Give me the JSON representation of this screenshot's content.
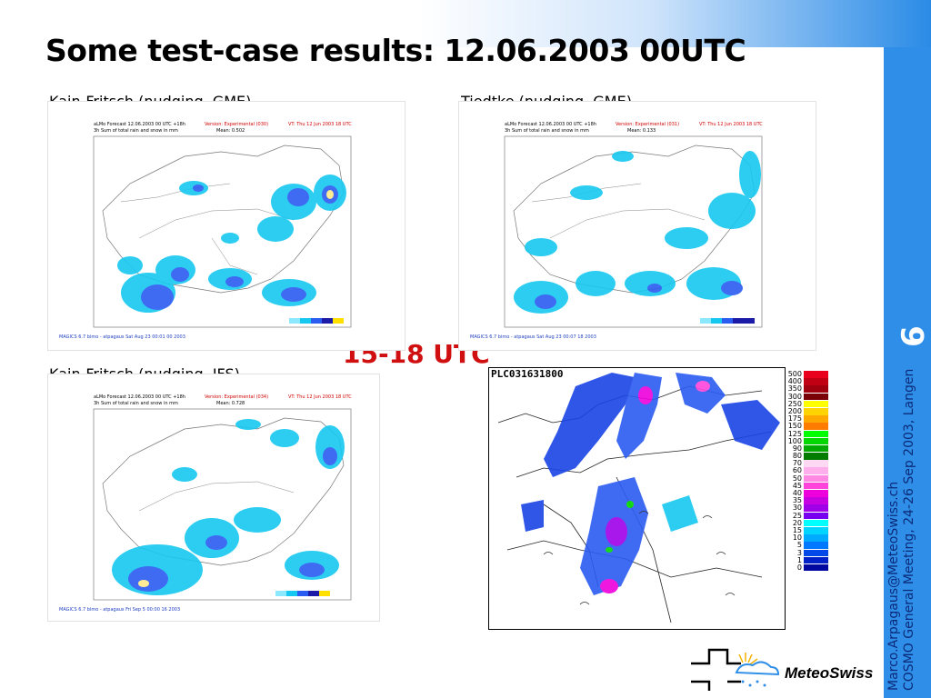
{
  "slide": {
    "title": "Some test-case results: 12.06.2003 00UTC",
    "page_number": "6",
    "time_label": "15-18 UTC",
    "side_email": "Marco.Arpagaus@MeteoSwiss.ch",
    "side_meeting": "COSMO General Meeting, 24-26 Sep 2003, Langen",
    "logo_text": "MeteoSwiss"
  },
  "panels": [
    {
      "caption": "Kain-Fritsch (nudging, GME)",
      "header_left1": "aLMo Forecast 12.06.2003 00 UTC +18h",
      "header_left2": "3h Sum of total rain and snow in mm",
      "header_mid1": "Version: Experimental (030)",
      "header_mid2": "Mean: 0.502",
      "header_right": "VT: Thu 12 Jun 2003 18 UTC",
      "footer": "MAGICS 6.7 bimo - atpagaus Sat Aug 23 00:01 00 2003"
    },
    {
      "caption": "Tiedtke (nudging, GME)",
      "header_left1": "aLMo Forecast 12.06.2003 00 UTC +18h",
      "header_left2": "3h Sum of total rain and snow in mm",
      "header_mid1": "Version: Experimental (031)",
      "header_mid2": "Mean: 0.133",
      "header_right": "VT: Thu 12 Jun 2003 18 UTC",
      "footer": "MAGICS 6.7 bimo - atpagaus Sat Aug 23 00:07 18 2003"
    },
    {
      "caption": "Kain-Fritsch (nudging, IFS)",
      "header_left1": "aLMo Forecast 12.06.2003 00 UTC +18h",
      "header_left2": "3h Sum of total rain and snow in mm",
      "header_mid1": "Version: Experimental (034)",
      "header_mid2": "Mean: 0.728",
      "header_right": "VT: Thu 12 Jun 2003 18 UTC",
      "footer": "MAGICS 6.7 bimo - atpagaus Fri Sep 5 00:00 16 2003"
    }
  ],
  "radar": {
    "label": "PLC031631800",
    "legend": [
      {
        "value": "500",
        "color": "#e8001c"
      },
      {
        "value": "400",
        "color": "#c20014"
      },
      {
        "value": "350",
        "color": "#a0000e"
      },
      {
        "value": "300",
        "color": "#7a0008"
      },
      {
        "value": "250",
        "color": "#ffff00"
      },
      {
        "value": "200",
        "color": "#ffd400"
      },
      {
        "value": "175",
        "color": "#ffa800"
      },
      {
        "value": "150",
        "color": "#ff7c00"
      },
      {
        "value": "125",
        "color": "#00ff00"
      },
      {
        "value": "100",
        "color": "#00d800"
      },
      {
        "value": "90",
        "color": "#00aa00"
      },
      {
        "value": "80",
        "color": "#007c00"
      },
      {
        "value": "70",
        "color": "#ffd8f4"
      },
      {
        "value": "60",
        "color": "#ffb0ec"
      },
      {
        "value": "50",
        "color": "#ff88e2"
      },
      {
        "value": "45",
        "color": "#ff44dc"
      },
      {
        "value": "40",
        "color": "#ee00dc"
      },
      {
        "value": "35",
        "color": "#c600e0"
      },
      {
        "value": "30",
        "color": "#a000e8"
      },
      {
        "value": "25",
        "color": "#7800f0"
      },
      {
        "value": "20",
        "color": "#00ffff"
      },
      {
        "value": "15",
        "color": "#00d4ff"
      },
      {
        "value": "10",
        "color": "#00aaff"
      },
      {
        "value": "5",
        "color": "#0078ff"
      },
      {
        "value": "3",
        "color": "#0048e8"
      },
      {
        "value": "1",
        "color": "#0020c8"
      },
      {
        "value": "0",
        "color": "#0008a0"
      }
    ]
  }
}
